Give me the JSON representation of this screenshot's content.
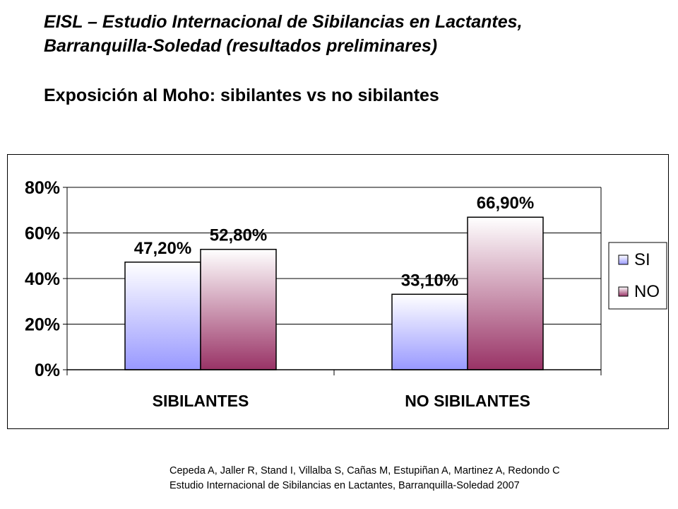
{
  "title": {
    "line1": "EISL – Estudio Internacional de Sibilancias en Lactantes,",
    "line2": "Barranquilla-Soledad  (resultados preliminares)"
  },
  "subtitle": "Exposición al Moho: sibilantes vs no sibilantes",
  "citation": {
    "line1": "Cepeda A, Jaller R, Stand I, Villalba S, Cañas M, Estupiñan A, Martinez A, Redondo C",
    "line2": "Estudio Internacional de Sibilancias en Lactantes, Barranquilla-Soledad 2007"
  },
  "chart_data": {
    "type": "bar",
    "categories": [
      "SIBILANTES",
      "NO SIBILANTES"
    ],
    "series": [
      {
        "name": "SI",
        "values": [
          47.2,
          33.1
        ],
        "labels": [
          "47,20%",
          "33,10%"
        ],
        "color_top": "#ffffff",
        "color_bottom": "#9999ff"
      },
      {
        "name": "NO",
        "values": [
          52.8,
          66.9
        ],
        "labels": [
          "52,80%",
          "66,90%"
        ],
        "color_top": "#ffffff",
        "color_bottom": "#993366"
      }
    ],
    "yticks": [
      "0%",
      "20%",
      "40%",
      "60%",
      "80%"
    ],
    "ytick_values": [
      0,
      20,
      40,
      60,
      80
    ],
    "ylim": [
      0,
      80
    ],
    "grid": true,
    "legend_position": "right"
  }
}
